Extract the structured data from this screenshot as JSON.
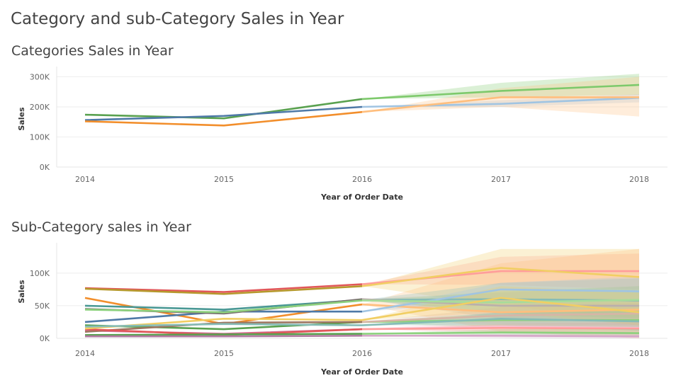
{
  "title": "Category and sub-Category Sales in Year",
  "chart_data": [
    {
      "type": "line",
      "title": "Categories Sales in Year",
      "xlabel": "Year of Order Date",
      "ylabel": "Sales",
      "x": [
        2014,
        2015,
        2016,
        2017,
        2018
      ],
      "ylim": [
        0,
        320000
      ],
      "yticks": [
        0,
        100000,
        200000,
        300000
      ],
      "ytick_labels": [
        "0K",
        "100K",
        "200K",
        "300K"
      ],
      "forecast_start": 2016,
      "series": [
        {
          "color": "#59a14f",
          "forecast_color": "#7dc96b",
          "values": [
            174000,
            162000,
            226000,
            253000,
            273000
          ],
          "band_upper": [
            null,
            null,
            226000,
            280000,
            310000
          ],
          "band_lower": [
            null,
            null,
            226000,
            232000,
            240000
          ]
        },
        {
          "color": "#4e79a7",
          "forecast_color": "#a0c4e2",
          "values": [
            156000,
            170000,
            200000,
            210000,
            230000
          ],
          "band_upper": [
            null,
            null,
            200000,
            222000,
            242000
          ],
          "band_lower": [
            null,
            null,
            200000,
            200000,
            215000
          ]
        },
        {
          "color": "#f28e2b",
          "forecast_color": "#ffbe7d",
          "values": [
            152000,
            138000,
            183000,
            232000,
            232000
          ],
          "band_upper": [
            null,
            null,
            183000,
            262000,
            300000
          ],
          "band_lower": [
            null,
            null,
            183000,
            200000,
            168000
          ]
        }
      ]
    },
    {
      "type": "line",
      "title": "Sub-Category sales in Year",
      "xlabel": "Year of Order Date",
      "ylabel": "Sales",
      "x": [
        2014,
        2015,
        2016,
        2017,
        2018
      ],
      "ylim": [
        0,
        140000
      ],
      "yticks": [
        0,
        50000,
        100000
      ],
      "ytick_labels": [
        "0K",
        "50K",
        "100K"
      ],
      "forecast_start": 2016,
      "series": [
        {
          "color": "#e15759",
          "forecast_color": "#ff9d9a",
          "values": [
            77000,
            71000,
            83000,
            103000,
            103000
          ],
          "band_upper": [
            null,
            null,
            83000,
            125000,
            130000
          ],
          "band_lower": [
            null,
            null,
            83000,
            82000,
            75000
          ]
        },
        {
          "color": "#b6992d",
          "forecast_color": "#f1ce63",
          "values": [
            76000,
            68000,
            80000,
            108000,
            94000
          ],
          "band_upper": [
            null,
            null,
            80000,
            137000,
            137000
          ],
          "band_lower": [
            null,
            null,
            80000,
            50000,
            30000
          ]
        },
        {
          "color": "#f28e2b",
          "forecast_color": "#ffbe7d",
          "values": [
            62000,
            22000,
            52000,
            40000,
            44000
          ],
          "band_upper": [
            null,
            null,
            52000,
            115000,
            137000
          ],
          "band_lower": [
            null,
            null,
            52000,
            10000,
            0
          ]
        },
        {
          "color": "#499894",
          "forecast_color": "#86bcb6",
          "values": [
            50000,
            44000,
            59000,
            60000,
            58000
          ],
          "band_upper": [
            null,
            null,
            59000,
            85000,
            92000
          ],
          "band_lower": [
            null,
            null,
            59000,
            38000,
            30000
          ]
        },
        {
          "color": "#4e79a7",
          "forecast_color": "#a0c4e2",
          "values": [
            25000,
            41000,
            41000,
            75000,
            72000
          ],
          "band_upper": [
            null,
            null,
            41000,
            85000,
            95000
          ],
          "band_lower": [
            null,
            null,
            41000,
            55000,
            40000
          ]
        },
        {
          "color": "#79706e",
          "forecast_color": "#bab0ac",
          "values": [
            45000,
            38000,
            60000,
            50000,
            50000
          ],
          "band_upper": [
            null,
            null,
            60000,
            70000,
            80000
          ],
          "band_lower": [
            null,
            null,
            60000,
            30000,
            25000
          ]
        },
        {
          "color": "#8cd17d",
          "forecast_color": "#a7dc9a",
          "values": [
            44000,
            40000,
            58000,
            55000,
            59000
          ],
          "band_upper": [
            null,
            null,
            58000,
            72000,
            80000
          ],
          "band_lower": [
            null,
            null,
            58000,
            40000,
            38000
          ]
        },
        {
          "color": "#59a14f",
          "forecast_color": "#8cd17d",
          "values": [
            20000,
            14000,
            25000,
            28000,
            28000
          ],
          "band_upper": [
            null,
            null,
            25000,
            40000,
            45000
          ],
          "band_lower": [
            null,
            null,
            25000,
            15000,
            12000
          ]
        },
        {
          "color": "#d37295",
          "forecast_color": "#fabfd2",
          "values": [
            12000,
            7000,
            14000,
            18000,
            16000
          ],
          "band_upper": [
            null,
            null,
            14000,
            28000,
            32000
          ],
          "band_lower": [
            null,
            null,
            14000,
            8000,
            4000
          ]
        },
        {
          "color": "#9d7660",
          "forecast_color": "#d7b5a6",
          "values": [
            10000,
            24000,
            25000,
            35000,
            38000
          ],
          "band_upper": [
            null,
            null,
            25000,
            48000,
            55000
          ],
          "band_lower": [
            null,
            null,
            25000,
            22000,
            20000
          ]
        },
        {
          "color": "#e15759",
          "forecast_color": "#ff9d9a",
          "values": [
            14000,
            5000,
            14000,
            16000,
            15000
          ],
          "band_upper": [
            null,
            null,
            14000,
            22000,
            25000
          ],
          "band_lower": [
            null,
            null,
            14000,
            10000,
            6000
          ]
        },
        {
          "color": "#f1ce63",
          "forecast_color": "#f1ce63",
          "values": [
            15000,
            30000,
            28000,
            62000,
            40000
          ],
          "band_upper": [
            null,
            null,
            28000,
            80000,
            70000
          ],
          "band_lower": [
            null,
            null,
            28000,
            40000,
            20000
          ]
        },
        {
          "color": "#59a14f",
          "forecast_color": "#8cd17d",
          "values": [
            5000,
            6000,
            7000,
            9000,
            8000
          ],
          "band_upper": [
            null,
            null,
            7000,
            14000,
            15000
          ],
          "band_lower": [
            null,
            null,
            7000,
            4000,
            2000
          ]
        },
        {
          "color": "#b07aa1",
          "forecast_color": "#d4a6c8",
          "values": [
            3000,
            3000,
            4000,
            4000,
            3000
          ],
          "band_upper": [
            null,
            null,
            4000,
            7000,
            8000
          ],
          "band_lower": [
            null,
            null,
            4000,
            1000,
            0
          ]
        },
        {
          "color": "#86bcb6",
          "forecast_color": "#86bcb6",
          "values": [
            18000,
            22000,
            20000,
            30000,
            26000
          ],
          "band_upper": [
            null,
            null,
            20000,
            40000,
            45000
          ],
          "band_lower": [
            null,
            null,
            20000,
            20000,
            12000
          ]
        }
      ]
    }
  ]
}
